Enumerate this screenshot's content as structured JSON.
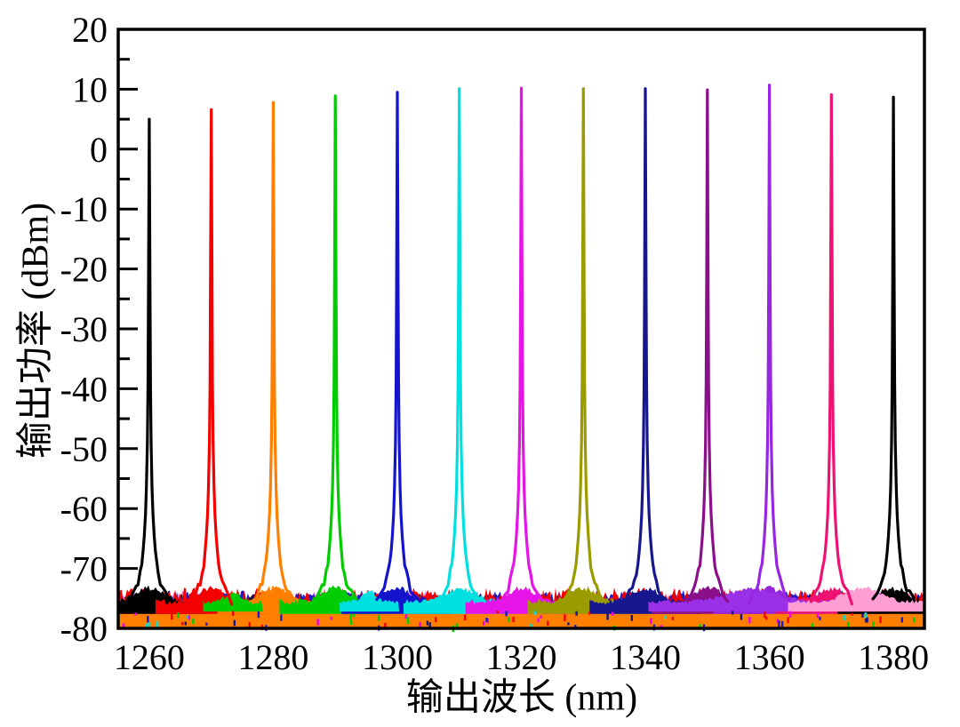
{
  "figure": {
    "background": "#FFFFFF",
    "frame_color": "#000000"
  },
  "chart_data": {
    "type": "line",
    "title": "",
    "xlabel": "输出波长 (nm)",
    "ylabel": "输出功率 (dBm)",
    "xlim": [
      1255,
      1385
    ],
    "ylim": [
      -80,
      20
    ],
    "grid": false,
    "legend": "none",
    "x_major_ticks": [
      1260,
      1280,
      1300,
      1320,
      1340,
      1360,
      1380
    ],
    "x_tick_labels": [
      "1260",
      "1280",
      "1300",
      "1320",
      "1340",
      "1360",
      "1380"
    ],
    "x_minor_ticks": [
      1270,
      1290,
      1310,
      1330,
      1350,
      1370
    ],
    "y_major_ticks": [
      20,
      10,
      0,
      -10,
      -20,
      -30,
      -40,
      -50,
      -60,
      -70,
      -80
    ],
    "y_tick_labels": [
      "20",
      "10",
      "0",
      "-10",
      "-20",
      "-30",
      "-40",
      "-50",
      "-60",
      "-70",
      "-80"
    ],
    "y_minor_ticks": [
      15,
      5,
      -5,
      -15,
      -25,
      -35,
      -45,
      -55,
      -65,
      -75
    ],
    "noise_floor_dbm": -75.6,
    "series": [
      {
        "name": "1260 nm",
        "center_nm": 1260,
        "peak_dbm": 5.0,
        "color": "#000000"
      },
      {
        "name": "1270 nm",
        "center_nm": 1270,
        "peak_dbm": 6.6,
        "color": "#F50000"
      },
      {
        "name": "1280 nm",
        "center_nm": 1280,
        "peak_dbm": 7.8,
        "color": "#FF8000"
      },
      {
        "name": "1290 nm",
        "center_nm": 1290,
        "peak_dbm": 8.9,
        "color": "#00CC00"
      },
      {
        "name": "1300 nm",
        "center_nm": 1300,
        "peak_dbm": 9.5,
        "color": "#1414CC"
      },
      {
        "name": "1310 nm",
        "center_nm": 1310,
        "peak_dbm": 10.1,
        "color": "#00E0E0"
      },
      {
        "name": "1320 nm",
        "center_nm": 1320,
        "peak_dbm": 10.2,
        "color": "#E614E6"
      },
      {
        "name": "1330 nm",
        "center_nm": 1330,
        "peak_dbm": 10.1,
        "color": "#9B9B00"
      },
      {
        "name": "1340 nm",
        "center_nm": 1340,
        "peak_dbm": 10.1,
        "color": "#16168F"
      },
      {
        "name": "1350 nm",
        "center_nm": 1350,
        "peak_dbm": 9.9,
        "color": "#8A0F8A"
      },
      {
        "name": "1360 nm",
        "center_nm": 1360,
        "peak_dbm": 10.7,
        "color": "#9726E0"
      },
      {
        "name": "1370 nm",
        "center_nm": 1370,
        "peak_dbm": 9.1,
        "color": "#EE1273"
      },
      {
        "name": "1380 nm",
        "center_nm": 1380,
        "peak_dbm": 8.7,
        "color": "#000000"
      }
    ],
    "noise_bands": [
      {
        "name": "plum",
        "color": "#E673E6",
        "base_dbm": -75.0,
        "jitter_db": 1.2
      },
      {
        "name": "black",
        "color": "#141414",
        "base_dbm": -75.3,
        "jitter_db": 1.1
      },
      {
        "name": "navy",
        "color": "#151580",
        "base_dbm": -75.1,
        "jitter_db": 1.1
      },
      {
        "name": "blue",
        "color": "#1C1CCC",
        "base_dbm": -74.9,
        "jitter_db": 1.3
      },
      {
        "name": "red",
        "color": "#F50000",
        "base_dbm": -74.6,
        "jitter_db": 1.4
      },
      {
        "name": "orange",
        "color": "#FF8000",
        "base_dbm": -76.1,
        "jitter_db": 0.9
      }
    ],
    "noise_shoulder": {
      "amp_db": 2.3,
      "halfwidth_nm": 3.2,
      "jitter_db": 1.0,
      "bottom_dbm": -77.6
    },
    "special_patches": [
      {
        "center_nm": 1273.5,
        "halfwidth_nm": 1.6,
        "top_dbm": -74.0,
        "color": "#00CC00"
      },
      {
        "center_nm": 1295.5,
        "halfwidth_nm": 1.6,
        "top_dbm": -73.8,
        "color": "#00E0E0"
      },
      {
        "center_nm": 1357.0,
        "halfwidth_nm": 5.5,
        "top_dbm": -73.4,
        "color": "#9A30E8"
      },
      {
        "center_nm": 1375.0,
        "halfwidth_nm": 4.0,
        "top_dbm": -73.2,
        "color": "#FF9ED2"
      }
    ],
    "speck_colors": [
      "#00CC00",
      "#1C1CCC",
      "#151580",
      "#EE00EE",
      "#00E0E0",
      "#F50000"
    ]
  }
}
